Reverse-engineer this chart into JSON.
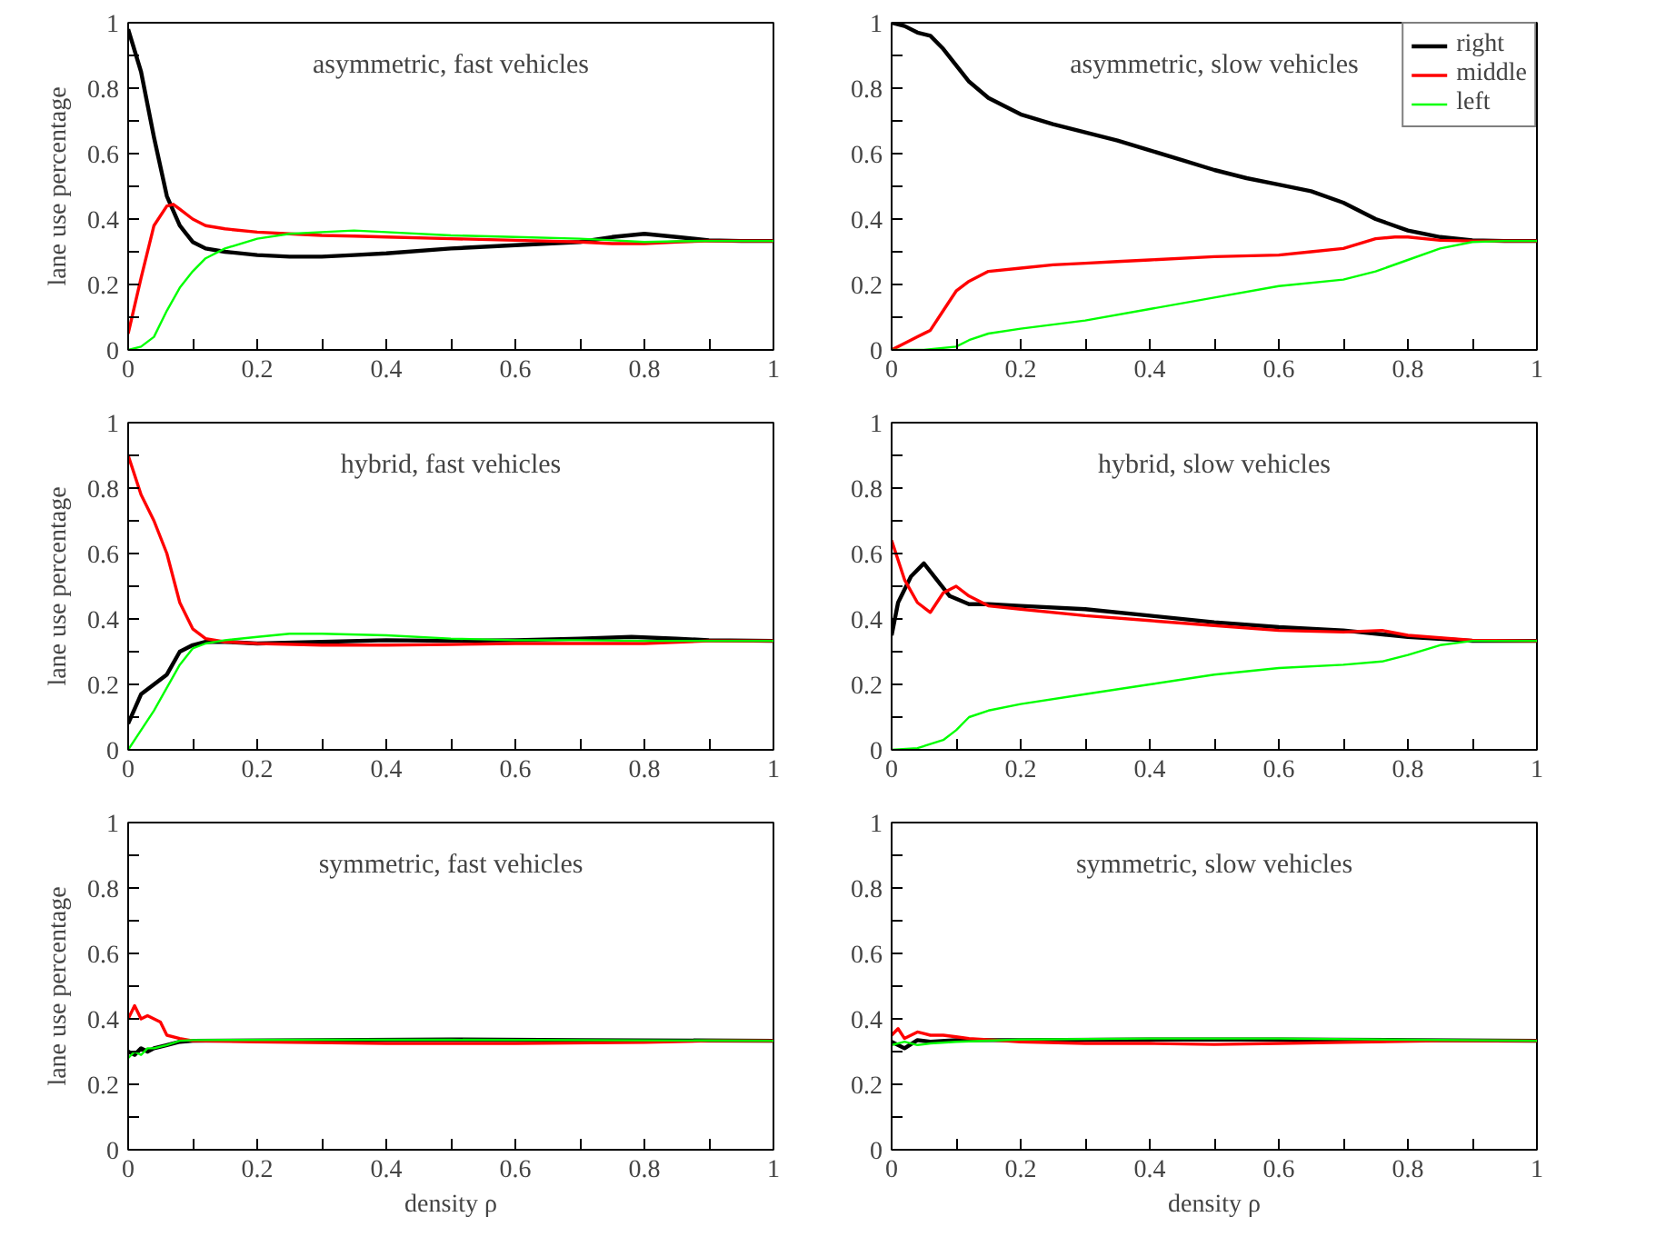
{
  "chart_data": [
    {
      "type": "line",
      "title": "asymmetric, fast vehicles",
      "ylabel": "lane use percentage",
      "xlim": [
        0,
        1
      ],
      "ylim": [
        0,
        1
      ],
      "xticks": [
        0,
        {
          "value": 0.1,
          "label": null
        },
        0.2,
        {
          "value": 0.3,
          "label": null
        },
        0.4,
        {
          "value": 0.5,
          "label": null
        },
        0.6,
        {
          "value": 0.7,
          "label": null
        },
        0.8,
        {
          "value": 0.9,
          "label": null
        },
        1
      ],
      "yticks": [
        0,
        {
          "value": 0.1,
          "label": null
        },
        0.2,
        {
          "value": 0.3,
          "label": null
        },
        0.4,
        {
          "value": 0.5,
          "label": null
        },
        0.6,
        {
          "value": 0.7,
          "label": null
        },
        0.8,
        {
          "value": 0.9,
          "label": null
        },
        1
      ],
      "series": [
        {
          "color": "#000000",
          "x": [
            0,
            0.02,
            0.04,
            0.06,
            0.08,
            0.1,
            0.12,
            0.15,
            0.2,
            0.25,
            0.3,
            0.35,
            0.4,
            0.5,
            0.6,
            0.7,
            0.75,
            0.8,
            0.85,
            0.9,
            0.95,
            1
          ],
          "values": [
            0.98,
            0.85,
            0.65,
            0.47,
            0.38,
            0.33,
            0.31,
            0.3,
            0.29,
            0.285,
            0.285,
            0.29,
            0.295,
            0.31,
            0.32,
            0.33,
            0.345,
            0.355,
            0.345,
            0.335,
            0.333,
            0.333
          ]
        },
        {
          "color": "#ff0000",
          "x": [
            0,
            0.02,
            0.04,
            0.06,
            0.07,
            0.08,
            0.1,
            0.12,
            0.15,
            0.2,
            0.25,
            0.3,
            0.35,
            0.4,
            0.5,
            0.6,
            0.7,
            0.75,
            0.8,
            0.85,
            0.9,
            0.95,
            1
          ],
          "values": [
            0.05,
            0.22,
            0.38,
            0.44,
            0.445,
            0.43,
            0.4,
            0.38,
            0.37,
            0.36,
            0.355,
            0.35,
            0.348,
            0.345,
            0.34,
            0.335,
            0.33,
            0.325,
            0.325,
            0.33,
            0.333,
            0.333,
            0.333
          ]
        },
        {
          "color": "#00ff00",
          "x": [
            0,
            0.02,
            0.04,
            0.06,
            0.08,
            0.1,
            0.12,
            0.15,
            0.2,
            0.25,
            0.3,
            0.35,
            0.4,
            0.5,
            0.6,
            0.7,
            0.75,
            0.8,
            0.85,
            0.9,
            0.95,
            1
          ],
          "values": [
            0,
            0.01,
            0.04,
            0.12,
            0.19,
            0.24,
            0.28,
            0.31,
            0.34,
            0.355,
            0.36,
            0.365,
            0.36,
            0.35,
            0.345,
            0.34,
            0.335,
            0.33,
            0.332,
            0.333,
            0.333,
            0.333
          ]
        }
      ]
    },
    {
      "type": "line",
      "title": "asymmetric, slow vehicles",
      "legend": "top right",
      "xlim": [
        0,
        1
      ],
      "ylim": [
        0,
        1
      ],
      "xticks": [
        0,
        {
          "value": 0.1,
          "label": null
        },
        0.2,
        {
          "value": 0.3,
          "label": null
        },
        0.4,
        {
          "value": 0.5,
          "label": null
        },
        0.6,
        {
          "value": 0.7,
          "label": null
        },
        0.8,
        {
          "value": 0.9,
          "label": null
        },
        1
      ],
      "yticks": [
        0,
        {
          "value": 0.1,
          "label": null
        },
        0.2,
        {
          "value": 0.3,
          "label": null
        },
        0.4,
        {
          "value": 0.5,
          "label": null
        },
        0.6,
        {
          "value": 0.7,
          "label": null
        },
        0.8,
        {
          "value": 0.9,
          "label": null
        },
        1
      ],
      "series": [
        {
          "name": "right",
          "color": "#000000",
          "x": [
            0,
            0.02,
            0.04,
            0.06,
            0.08,
            0.1,
            0.12,
            0.15,
            0.2,
            0.25,
            0.3,
            0.35,
            0.4,
            0.45,
            0.5,
            0.55,
            0.6,
            0.65,
            0.7,
            0.75,
            0.8,
            0.85,
            0.9,
            0.95,
            1
          ],
          "values": [
            1.0,
            0.99,
            0.97,
            0.96,
            0.92,
            0.87,
            0.82,
            0.77,
            0.72,
            0.69,
            0.665,
            0.64,
            0.61,
            0.58,
            0.55,
            0.525,
            0.505,
            0.485,
            0.45,
            0.4,
            0.365,
            0.345,
            0.335,
            0.333,
            0.333
          ]
        },
        {
          "name": "middle",
          "color": "#ff0000",
          "x": [
            0,
            0.02,
            0.04,
            0.06,
            0.08,
            0.1,
            0.12,
            0.15,
            0.2,
            0.25,
            0.3,
            0.35,
            0.4,
            0.5,
            0.6,
            0.65,
            0.7,
            0.75,
            0.78,
            0.8,
            0.85,
            0.9,
            1
          ],
          "values": [
            0,
            0.02,
            0.04,
            0.06,
            0.12,
            0.18,
            0.21,
            0.24,
            0.25,
            0.26,
            0.265,
            0.27,
            0.275,
            0.285,
            0.29,
            0.3,
            0.31,
            0.34,
            0.345,
            0.345,
            0.335,
            0.333,
            0.333
          ]
        },
        {
          "name": "left",
          "color": "#00ff00",
          "x": [
            0,
            0.05,
            0.1,
            0.12,
            0.15,
            0.2,
            0.3,
            0.4,
            0.5,
            0.6,
            0.7,
            0.75,
            0.8,
            0.85,
            0.9,
            0.95,
            1
          ],
          "values": [
            0,
            0,
            0.01,
            0.03,
            0.05,
            0.065,
            0.09,
            0.125,
            0.16,
            0.195,
            0.215,
            0.24,
            0.275,
            0.31,
            0.33,
            0.333,
            0.333
          ]
        }
      ]
    },
    {
      "type": "line",
      "title": "hybrid, fast vehicles",
      "ylabel": "lane use percentage",
      "xlim": [
        0,
        1
      ],
      "ylim": [
        0,
        1
      ],
      "xticks": [
        0,
        {
          "value": 0.1,
          "label": null
        },
        0.2,
        {
          "value": 0.3,
          "label": null
        },
        0.4,
        {
          "value": 0.5,
          "label": null
        },
        0.6,
        {
          "value": 0.7,
          "label": null
        },
        0.8,
        {
          "value": 0.9,
          "label": null
        },
        1
      ],
      "yticks": [
        0,
        {
          "value": 0.1,
          "label": null
        },
        0.2,
        {
          "value": 0.3,
          "label": null
        },
        0.4,
        {
          "value": 0.5,
          "label": null
        },
        0.6,
        {
          "value": 0.7,
          "label": null
        },
        0.8,
        {
          "value": 0.9,
          "label": null
        },
        1
      ],
      "series": [
        {
          "color": "#000000",
          "x": [
            0,
            0.02,
            0.04,
            0.06,
            0.08,
            0.1,
            0.12,
            0.15,
            0.2,
            0.3,
            0.4,
            0.5,
            0.6,
            0.7,
            0.78,
            0.85,
            0.9,
            1
          ],
          "values": [
            0.08,
            0.17,
            0.2,
            0.23,
            0.3,
            0.32,
            0.33,
            0.33,
            0.325,
            0.33,
            0.335,
            0.333,
            0.335,
            0.34,
            0.345,
            0.34,
            0.335,
            0.333
          ]
        },
        {
          "color": "#ff0000",
          "x": [
            0,
            0.02,
            0.04,
            0.06,
            0.08,
            0.1,
            0.12,
            0.15,
            0.2,
            0.3,
            0.4,
            0.5,
            0.6,
            0.7,
            0.8,
            0.9,
            1
          ],
          "values": [
            0.9,
            0.78,
            0.7,
            0.6,
            0.45,
            0.37,
            0.34,
            0.33,
            0.325,
            0.32,
            0.32,
            0.322,
            0.325,
            0.325,
            0.325,
            0.333,
            0.333
          ]
        },
        {
          "color": "#00ff00",
          "x": [
            0,
            0.02,
            0.04,
            0.06,
            0.08,
            0.1,
            0.12,
            0.15,
            0.2,
            0.25,
            0.3,
            0.4,
            0.5,
            0.6,
            0.7,
            0.8,
            0.9,
            1
          ],
          "values": [
            0,
            0.06,
            0.12,
            0.19,
            0.26,
            0.31,
            0.325,
            0.335,
            0.345,
            0.355,
            0.355,
            0.35,
            0.34,
            0.335,
            0.335,
            0.333,
            0.333,
            0.333
          ]
        }
      ]
    },
    {
      "type": "line",
      "title": "hybrid, slow vehicles",
      "xlim": [
        0,
        1
      ],
      "ylim": [
        0,
        1
      ],
      "xticks": [
        0,
        {
          "value": 0.1,
          "label": null
        },
        0.2,
        {
          "value": 0.3,
          "label": null
        },
        0.4,
        {
          "value": 0.5,
          "label": null
        },
        0.6,
        {
          "value": 0.7,
          "label": null
        },
        0.8,
        {
          "value": 0.9,
          "label": null
        },
        1
      ],
      "yticks": [
        0,
        {
          "value": 0.1,
          "label": null
        },
        0.2,
        {
          "value": 0.3,
          "label": null
        },
        0.4,
        {
          "value": 0.5,
          "label": null
        },
        0.6,
        {
          "value": 0.7,
          "label": null
        },
        0.8,
        {
          "value": 0.9,
          "label": null
        },
        1
      ],
      "series": [
        {
          "color": "#000000",
          "x": [
            0,
            0.01,
            0.03,
            0.05,
            0.07,
            0.09,
            0.12,
            0.15,
            0.2,
            0.3,
            0.4,
            0.5,
            0.6,
            0.7,
            0.8,
            0.9,
            1
          ],
          "values": [
            0.35,
            0.45,
            0.53,
            0.57,
            0.52,
            0.47,
            0.445,
            0.445,
            0.44,
            0.43,
            0.41,
            0.39,
            0.375,
            0.365,
            0.345,
            0.333,
            0.333
          ]
        },
        {
          "color": "#ff0000",
          "x": [
            0,
            0.02,
            0.04,
            0.06,
            0.08,
            0.1,
            0.12,
            0.15,
            0.2,
            0.3,
            0.4,
            0.5,
            0.6,
            0.7,
            0.76,
            0.8,
            0.9,
            1
          ],
          "values": [
            0.64,
            0.52,
            0.45,
            0.42,
            0.48,
            0.5,
            0.47,
            0.44,
            0.43,
            0.41,
            0.395,
            0.38,
            0.365,
            0.36,
            0.365,
            0.35,
            0.335,
            0.333
          ]
        },
        {
          "color": "#00ff00",
          "x": [
            0,
            0.04,
            0.08,
            0.1,
            0.12,
            0.15,
            0.2,
            0.3,
            0.4,
            0.5,
            0.6,
            0.7,
            0.76,
            0.8,
            0.85,
            0.9,
            1
          ],
          "values": [
            0,
            0.005,
            0.03,
            0.06,
            0.1,
            0.12,
            0.14,
            0.17,
            0.2,
            0.23,
            0.25,
            0.26,
            0.27,
            0.29,
            0.32,
            0.333,
            0.333
          ]
        }
      ]
    },
    {
      "type": "line",
      "title": "symmetric, fast vehicles",
      "xlabel": "density ρ",
      "ylabel": "lane use percentage",
      "xlim": [
        0,
        1
      ],
      "ylim": [
        0,
        1
      ],
      "xticks": [
        0,
        {
          "value": 0.1,
          "label": null
        },
        0.2,
        {
          "value": 0.3,
          "label": null
        },
        0.4,
        {
          "value": 0.5,
          "label": null
        },
        0.6,
        {
          "value": 0.7,
          "label": null
        },
        0.8,
        {
          "value": 0.9,
          "label": null
        },
        1
      ],
      "yticks": [
        0,
        {
          "value": 0.1,
          "label": null
        },
        0.2,
        {
          "value": 0.3,
          "label": null
        },
        0.4,
        {
          "value": 0.5,
          "label": null
        },
        0.6,
        {
          "value": 0.7,
          "label": null
        },
        0.8,
        {
          "value": 0.9,
          "label": null
        },
        1
      ],
      "series": [
        {
          "color": "#000000",
          "x": [
            0,
            0.01,
            0.02,
            0.03,
            0.04,
            0.06,
            0.08,
            0.1,
            0.3,
            0.5,
            0.7,
            1
          ],
          "values": [
            0.3,
            0.29,
            0.31,
            0.3,
            0.31,
            0.32,
            0.33,
            0.333,
            0.335,
            0.337,
            0.335,
            0.333
          ]
        },
        {
          "color": "#ff0000",
          "x": [
            0,
            0.01,
            0.02,
            0.03,
            0.04,
            0.05,
            0.06,
            0.08,
            0.1,
            0.2,
            0.4,
            0.6,
            0.8,
            0.9,
            1
          ],
          "values": [
            0.4,
            0.44,
            0.4,
            0.41,
            0.4,
            0.39,
            0.35,
            0.34,
            0.333,
            0.33,
            0.325,
            0.325,
            0.328,
            0.333,
            0.333
          ]
        },
        {
          "color": "#00ff00",
          "x": [
            0,
            0.01,
            0.02,
            0.03,
            0.04,
            0.06,
            0.08,
            0.1,
            0.3,
            0.5,
            0.7,
            1
          ],
          "values": [
            0.28,
            0.3,
            0.29,
            0.31,
            0.31,
            0.32,
            0.333,
            0.335,
            0.336,
            0.336,
            0.335,
            0.333
          ]
        }
      ]
    },
    {
      "type": "line",
      "title": "symmetric, slow vehicles",
      "xlabel": "density ρ",
      "xlim": [
        0,
        1
      ],
      "ylim": [
        0,
        1
      ],
      "xticks": [
        0,
        {
          "value": 0.1,
          "label": null
        },
        0.2,
        {
          "value": 0.3,
          "label": null
        },
        0.4,
        {
          "value": 0.5,
          "label": null
        },
        0.6,
        {
          "value": 0.7,
          "label": null
        },
        0.8,
        {
          "value": 0.9,
          "label": null
        },
        1
      ],
      "yticks": [
        0,
        {
          "value": 0.1,
          "label": null
        },
        0.2,
        {
          "value": 0.3,
          "label": null
        },
        0.4,
        {
          "value": 0.5,
          "label": null
        },
        0.6,
        {
          "value": 0.7,
          "label": null
        },
        0.8,
        {
          "value": 0.9,
          "label": null
        },
        1
      ],
      "series": [
        {
          "color": "#000000",
          "x": [
            0,
            0.02,
            0.04,
            0.06,
            0.1,
            0.2,
            0.4,
            0.6,
            0.8,
            1
          ],
          "values": [
            0.33,
            0.31,
            0.335,
            0.33,
            0.335,
            0.335,
            0.337,
            0.337,
            0.335,
            0.333
          ]
        },
        {
          "color": "#ff0000",
          "x": [
            0,
            0.01,
            0.02,
            0.04,
            0.06,
            0.08,
            0.1,
            0.12,
            0.2,
            0.3,
            0.4,
            0.5,
            0.6,
            0.7,
            0.85,
            1
          ],
          "values": [
            0.35,
            0.37,
            0.34,
            0.36,
            0.35,
            0.35,
            0.345,
            0.34,
            0.33,
            0.325,
            0.325,
            0.322,
            0.325,
            0.328,
            0.333,
            0.333
          ]
        },
        {
          "color": "#00ff00",
          "x": [
            0,
            0.02,
            0.04,
            0.06,
            0.1,
            0.2,
            0.4,
            0.6,
            0.8,
            1
          ],
          "values": [
            0.32,
            0.33,
            0.32,
            0.325,
            0.33,
            0.337,
            0.34,
            0.34,
            0.336,
            0.333
          ]
        }
      ]
    }
  ]
}
